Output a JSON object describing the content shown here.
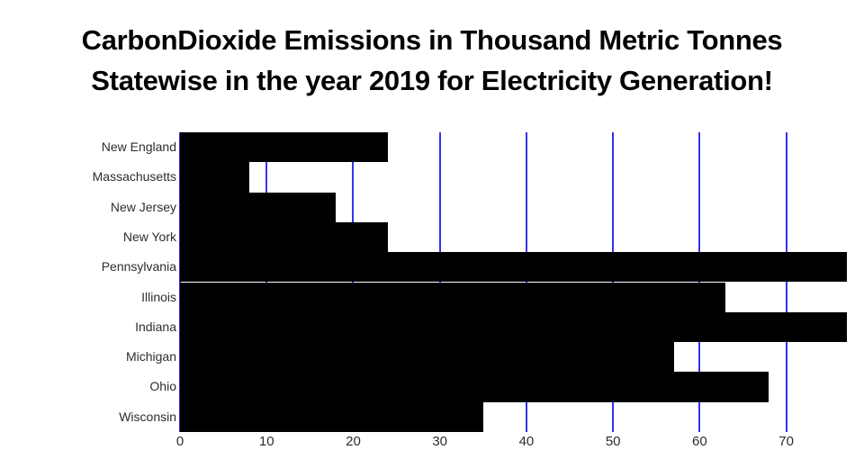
{
  "title": {
    "line1": "CarbonDioxide Emissions in Thousand Metric Tonnes",
    "line2": "Statewise in the year 2019 for Electricity Generation!"
  },
  "chart_data": {
    "type": "bar",
    "orientation": "horizontal",
    "title": "CarbonDioxide Emissions in Thousand Metric Tonnes Statewise in the year 2019 for Electricity Generation!",
    "categories": [
      "New England",
      "Massachusetts",
      "New Jersey",
      "New York",
      "Pennsylvania",
      "Illinois",
      "Indiana",
      "Michigan",
      "Ohio",
      "Wisconsin"
    ],
    "values": [
      24,
      8,
      18,
      24,
      77,
      63,
      77,
      57,
      68,
      35
    ],
    "units": "Thousand Metric Tonnes",
    "year_shown": "2019",
    "xlabel": "",
    "ylabel": "",
    "xlim": [
      0,
      77
    ],
    "xticks": [
      0,
      10,
      20,
      30,
      40,
      50,
      60,
      70
    ],
    "grid": true,
    "legend": false,
    "bar_color": "#000000",
    "grid_color": "#3333f0",
    "tick_label_color": "#2d2d2d",
    "background_color": "#ffffff"
  }
}
